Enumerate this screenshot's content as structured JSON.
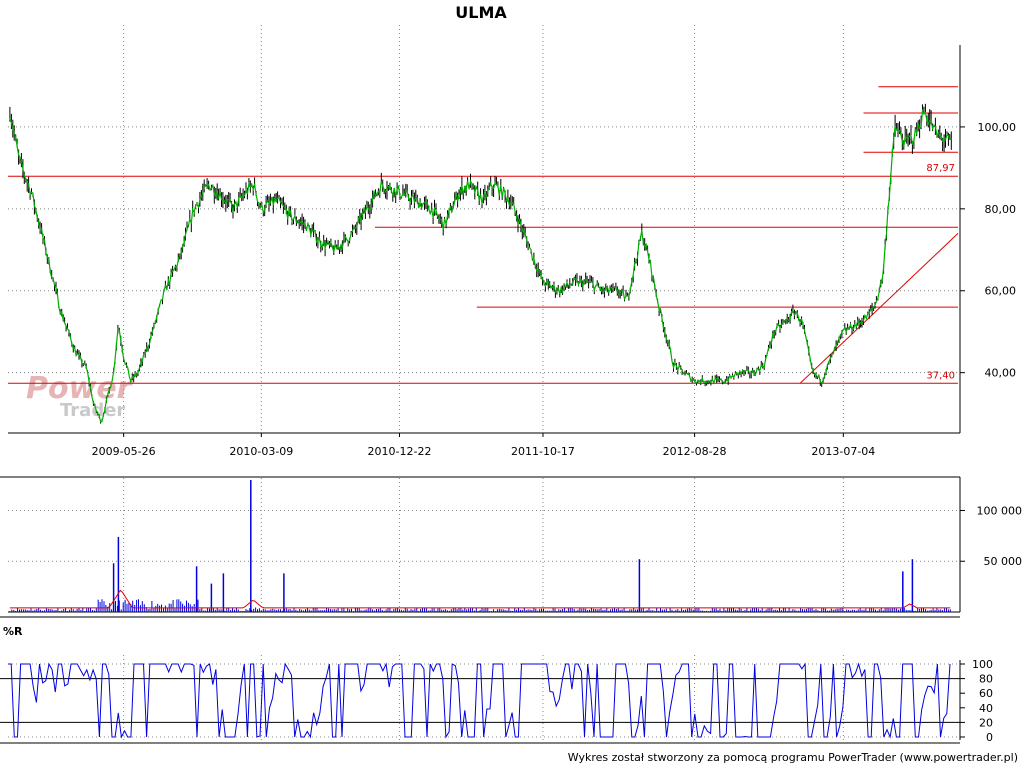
{
  "chart_data": [
    {
      "type": "line",
      "panel": "price",
      "title": "ULMA",
      "x_ticks": [
        "2009-05-26",
        "2010-03-09",
        "2010-12-22",
        "2011-10-17",
        "2012-08-28",
        "2013-07-04"
      ],
      "y_ticks": [
        "40,00",
        "60,00",
        "80,00",
        "100,00"
      ],
      "ylim": [
        26,
        120
      ],
      "grid": "dotted",
      "series": [
        {
          "x": [
            "2008-10-01",
            "2008-10-20",
            "2008-11-15",
            "2008-12-15",
            "2009-01-15",
            "2009-02-15",
            "2009-03-10",
            "2009-03-25",
            "2009-04-10",
            "2009-05-05",
            "2009-05-15",
            "2009-05-26",
            "2009-06-10",
            "2009-06-25",
            "2009-07-20",
            "2009-08-20",
            "2009-09-20",
            "2009-10-20",
            "2009-11-20",
            "2009-12-10",
            "2010-01-10",
            "2010-02-05",
            "2010-02-20",
            "2010-03-09",
            "2010-04-10",
            "2010-05-10",
            "2010-06-10",
            "2010-07-10",
            "2010-08-10",
            "2010-09-15",
            "2010-10-15",
            "2010-11-15",
            "2010-12-22",
            "2011-01-25",
            "2011-02-25",
            "2011-03-25",
            "2011-04-25",
            "2011-05-15",
            "2011-06-15",
            "2011-07-05",
            "2011-07-25",
            "2011-08-10",
            "2011-09-01",
            "2011-10-17",
            "2011-11-20",
            "2011-12-20",
            "2012-01-20",
            "2012-02-20",
            "2012-03-20",
            "2012-04-10",
            "2012-04-25",
            "2012-05-10",
            "2012-05-25",
            "2012-06-15",
            "2012-07-15",
            "2012-08-28",
            "2012-09-30",
            "2012-10-30",
            "2012-11-30",
            "2012-12-30",
            "2013-01-20",
            "2013-02-10",
            "2013-03-10",
            "2013-03-25",
            "2013-04-10",
            "2013-05-01",
            "2013-05-20",
            "2013-06-10",
            "2013-07-04",
            "2013-08-05",
            "2013-08-25",
            "2013-09-10",
            "2013-09-25",
            "2013-10-05",
            "2013-10-20",
            "2013-11-10",
            "2013-12-01",
            "2013-12-20",
            "2014-01-15",
            "2014-02-15"
          ],
          "values": [
            104,
            92,
            84,
            70,
            55,
            45,
            41,
            32,
            28,
            40,
            52,
            44,
            38,
            40,
            48,
            60,
            68,
            80,
            86,
            84,
            80,
            84,
            86,
            80,
            82,
            78,
            76,
            72,
            70,
            74,
            80,
            86,
            84,
            82,
            80,
            76,
            84,
            86,
            82,
            86,
            84,
            82,
            76,
            62,
            60,
            62,
            62,
            60,
            60,
            58,
            66,
            74,
            68,
            56,
            42,
            38,
            38,
            38,
            40,
            40,
            42,
            50,
            53,
            55,
            52,
            40,
            38,
            44,
            50,
            52,
            54,
            57,
            64,
            80,
            100,
            96,
            98,
            104,
            98,
            96
          ]
        }
      ],
      "horizontal_levels": [
        87.97,
        75.5,
        56,
        37.4,
        109.8,
        103.4,
        93.8
      ],
      "level_labels": [
        "87,97",
        "37,40"
      ],
      "trendline": {
        "from": [
          "2013-04-05",
          37.4
        ],
        "to": [
          "2014-02-28",
          74
        ]
      }
    },
    {
      "type": "bar",
      "panel": "volume",
      "y_ticks": [
        "50 000",
        "100 000"
      ],
      "ylim": [
        0,
        130000
      ],
      "spikes": [
        {
          "x": "2009-05-15",
          "value": 74000
        },
        {
          "x": "2009-05-05",
          "value": 48000
        },
        {
          "x": "2009-10-25",
          "value": 45000
        },
        {
          "x": "2009-11-25",
          "value": 28000
        },
        {
          "x": "2009-12-20",
          "value": 38000
        },
        {
          "x": "2010-02-15",
          "value": 130000
        },
        {
          "x": "2010-04-25",
          "value": 38000
        },
        {
          "x": "2012-05-05",
          "value": 52000
        },
        {
          "x": "2013-11-05",
          "value": 40000
        },
        {
          "x": "2013-11-25",
          "value": 52000
        }
      ],
      "baseline_level": 3000,
      "moving_average": {
        "level": 4000,
        "bumps": [
          {
            "x": "2009-05-20",
            "value": 22000
          },
          {
            "x": "2010-02-20",
            "value": 12000
          },
          {
            "x": "2013-11-20",
            "value": 8000
          }
        ]
      }
    },
    {
      "type": "line",
      "panel": "williams-r",
      "label": "%R",
      "y_ticks": [
        "0",
        "20",
        "40",
        "60",
        "80",
        "100"
      ],
      "ylim": [
        0,
        100
      ],
      "reference_levels": [
        20,
        80
      ],
      "series": [
        {
          "oscillates_between": [
            0,
            100
          ],
          "points": 300
        }
      ]
    }
  ],
  "watermark": {
    "line1": "Power",
    "line2": "Trader"
  },
  "footer": "Wykres został stworzony za pomocą programu PowerTrader (www.powertrader.pl)",
  "colors": {
    "price": "#00b000",
    "price_bars": "#000000",
    "levels": "#e00000",
    "volume": "#0000e0",
    "volume_ma": "#e00000",
    "oscillator": "#0000e0"
  }
}
